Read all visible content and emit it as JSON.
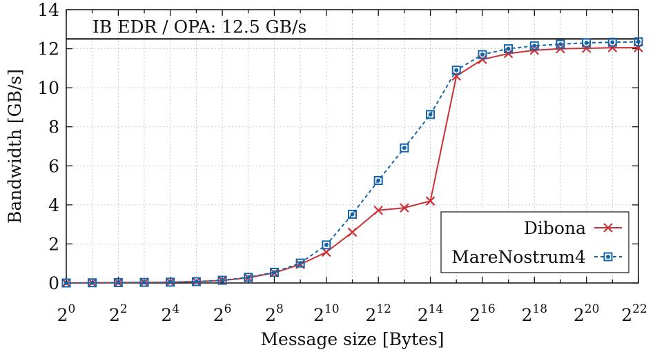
{
  "chart_data": {
    "type": "line",
    "title": "",
    "xlabel": "Message size [Bytes]",
    "ylabel": "Bandwidth [GB/s]",
    "x_scale": "log2",
    "x_tick_base": "2",
    "x_exponents": [
      0,
      1,
      2,
      3,
      4,
      5,
      6,
      7,
      8,
      9,
      10,
      11,
      12,
      13,
      14,
      15,
      16,
      17,
      18,
      19,
      20,
      21,
      22
    ],
    "x_tick_exponents": [
      0,
      2,
      4,
      6,
      8,
      10,
      12,
      14,
      16,
      18,
      20,
      22
    ],
    "x_tick_labels": [
      "0",
      "2",
      "4",
      "6",
      "8",
      "10",
      "12",
      "14",
      "16",
      "18",
      "20",
      "22"
    ],
    "xlim": [
      0,
      22
    ],
    "ylim": [
      0,
      14
    ],
    "y_ticks": [
      0,
      2,
      4,
      6,
      8,
      10,
      12,
      14
    ],
    "y_tick_labels": [
      "0",
      "2",
      "4",
      "6",
      "8",
      "10",
      "12",
      "14"
    ],
    "grid": true,
    "legend_position": "bottom-right",
    "reference_line": {
      "value": 12.5,
      "label": "IB EDR / OPA: 12.5 GB/s",
      "color": "#000000"
    },
    "series": [
      {
        "name": "Dibona",
        "color": "#cc2f35",
        "marker": "x",
        "line_style": "solid",
        "values": [
          0.0,
          0.01,
          0.02,
          0.03,
          0.04,
          0.07,
          0.13,
          0.27,
          0.52,
          0.95,
          1.58,
          2.6,
          3.72,
          3.85,
          4.2,
          10.6,
          11.45,
          11.75,
          11.92,
          12.0,
          12.02,
          12.05,
          12.05
        ]
      },
      {
        "name": "MareNostrum4",
        "color": "#1565a8",
        "marker": "square-dot",
        "line_style": "dashed",
        "values": [
          0.0,
          0.01,
          0.02,
          0.03,
          0.04,
          0.07,
          0.14,
          0.29,
          0.55,
          1.02,
          1.95,
          3.52,
          5.25,
          6.92,
          8.63,
          10.9,
          11.7,
          12.0,
          12.15,
          12.23,
          12.3,
          12.33,
          12.35
        ]
      }
    ]
  }
}
